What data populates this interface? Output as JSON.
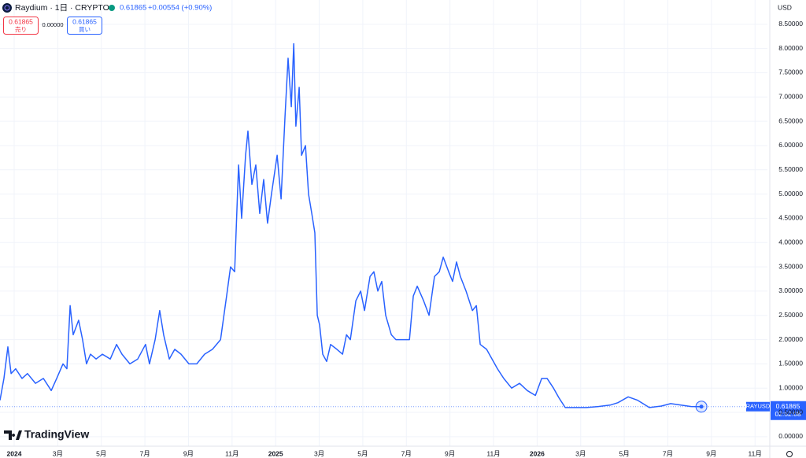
{
  "header": {
    "symbol": "Raydium · 1日 · CRYPTO",
    "last": "0.61865",
    "change": "+0.00554 (+0.90%)",
    "sell_price": "0.61865",
    "sell_label": "売り",
    "spread": "0.00000",
    "buy_price": "0.61865",
    "buy_label": "買い"
  },
  "currency": "USD",
  "price_tag": {
    "ticker": "RAYUSD",
    "price": "0.61865",
    "countdown": "02:52:08"
  },
  "brand": "TradingView",
  "chart_data": {
    "type": "line",
    "grid": true,
    "xlim": [
      -0.65,
      34.57
    ],
    "xticks": [
      {
        "value": 0,
        "label": "2024"
      },
      {
        "value": 2,
        "label": "3月"
      },
      {
        "value": 4,
        "label": "5月"
      },
      {
        "value": 6,
        "label": "7月"
      },
      {
        "value": 8,
        "label": "9月"
      },
      {
        "value": 10,
        "label": "11月"
      },
      {
        "value": 12,
        "label": "2025"
      },
      {
        "value": 14,
        "label": "3月"
      },
      {
        "value": 16,
        "label": "5月"
      },
      {
        "value": 18,
        "label": "7月"
      },
      {
        "value": 20,
        "label": "9月"
      },
      {
        "value": 22,
        "label": "11月"
      },
      {
        "value": 24,
        "label": "2026"
      },
      {
        "value": 26,
        "label": "3月"
      },
      {
        "value": 28,
        "label": "5月"
      },
      {
        "value": 30,
        "label": "7月"
      },
      {
        "value": 32,
        "label": "9月"
      },
      {
        "value": 34,
        "label": "11月"
      }
    ],
    "ylim": [
      -0.2,
      9.0
    ],
    "yticks": [
      {
        "value": 0,
        "label": "0.00000"
      },
      {
        "value": 0.5,
        "label": "0.50000"
      },
      {
        "value": 1,
        "label": "1.00000"
      },
      {
        "value": 1.5,
        "label": "1.50000"
      },
      {
        "value": 2,
        "label": "2.00000"
      },
      {
        "value": 2.5,
        "label": "2.50000"
      },
      {
        "value": 3,
        "label": "3.00000"
      },
      {
        "value": 3.5,
        "label": "3.50000"
      },
      {
        "value": 4,
        "label": "4.00000"
      },
      {
        "value": 4.5,
        "label": "4.50000"
      },
      {
        "value": 5,
        "label": "5.00000"
      },
      {
        "value": 5.5,
        "label": "5.50000"
      },
      {
        "value": 6,
        "label": "6.00000"
      },
      {
        "value": 6.5,
        "label": "6.50000"
      },
      {
        "value": 7,
        "label": "7.00000"
      },
      {
        "value": 7.5,
        "label": "7.50000"
      },
      {
        "value": 8,
        "label": "8.00000"
      },
      {
        "value": 8.5,
        "label": "8.50000"
      }
    ],
    "series": [
      {
        "name": "RAYUSD",
        "color": "#2962ff",
        "x": [
          -0.65,
          -0.47,
          -0.29,
          -0.14,
          0.07,
          0.36,
          0.61,
          0.98,
          1.34,
          1.7,
          1.95,
          2.24,
          2.42,
          2.57,
          2.71,
          2.96,
          3.14,
          3.32,
          3.5,
          3.76,
          4.05,
          4.41,
          4.7,
          4.95,
          5.31,
          5.67,
          6.03,
          6.21,
          6.47,
          6.68,
          6.86,
          7.12,
          7.37,
          7.66,
          8.02,
          8.38,
          8.74,
          9.1,
          9.47,
          9.75,
          9.93,
          10.12,
          10.3,
          10.44,
          10.62,
          10.73,
          10.91,
          11.09,
          11.27,
          11.45,
          11.63,
          11.81,
          12.07,
          12.25,
          12.43,
          12.57,
          12.72,
          12.83,
          12.93,
          13.08,
          13.19,
          13.37,
          13.51,
          13.66,
          13.8,
          13.91,
          14.02,
          14.16,
          14.34,
          14.52,
          14.81,
          15.07,
          15.25,
          15.43,
          15.68,
          15.9,
          16.08,
          16.33,
          16.51,
          16.69,
          16.87,
          17.05,
          17.31,
          17.52,
          17.77,
          18.14,
          18.32,
          18.5,
          18.79,
          19.04,
          19.29,
          19.51,
          19.69,
          19.94,
          20.12,
          20.3,
          20.48,
          20.74,
          21.03,
          21.21,
          21.39,
          21.68,
          21.93,
          22.18,
          22.47,
          22.83,
          23.19,
          23.55,
          23.92,
          24.21,
          24.46,
          24.75,
          25.0,
          25.29,
          25.72,
          26.26,
          26.81,
          27.35,
          27.71,
          28.18,
          28.61,
          29.15,
          29.7,
          30.13,
          30.6,
          31.07,
          31.54
        ],
        "values": [
          0.75,
          1.2,
          1.85,
          1.3,
          1.4,
          1.2,
          1.3,
          1.1,
          1.2,
          0.95,
          1.2,
          1.5,
          1.4,
          2.7,
          2.1,
          2.4,
          2.0,
          1.5,
          1.7,
          1.6,
          1.7,
          1.6,
          1.9,
          1.7,
          1.5,
          1.6,
          1.9,
          1.5,
          2.0,
          2.6,
          2.1,
          1.6,
          1.8,
          1.7,
          1.5,
          1.5,
          1.7,
          1.8,
          2.0,
          2.9,
          3.5,
          3.4,
          5.6,
          4.5,
          5.8,
          6.3,
          5.2,
          5.6,
          4.6,
          5.3,
          4.4,
          5.0,
          5.8,
          4.9,
          6.6,
          7.8,
          6.8,
          8.1,
          6.4,
          7.2,
          5.8,
          6.0,
          5.0,
          4.6,
          4.2,
          2.5,
          2.3,
          1.7,
          1.55,
          1.9,
          1.8,
          1.7,
          2.1,
          2.0,
          2.8,
          3.0,
          2.6,
          3.3,
          3.4,
          3.0,
          3.2,
          2.5,
          2.1,
          2.0,
          2.0,
          2.0,
          2.9,
          3.1,
          2.8,
          2.5,
          3.3,
          3.4,
          3.7,
          3.4,
          3.2,
          3.6,
          3.3,
          3.0,
          2.6,
          2.7,
          1.9,
          1.8,
          1.6,
          1.4,
          1.2,
          1.0,
          1.1,
          0.95,
          0.85,
          1.2,
          1.2,
          1.0,
          0.8,
          0.6,
          0.6,
          0.6,
          0.62,
          0.65,
          0.7,
          0.82,
          0.75,
          0.6,
          0.63,
          0.68,
          0.65,
          0.62,
          0.61865
        ]
      }
    ]
  }
}
